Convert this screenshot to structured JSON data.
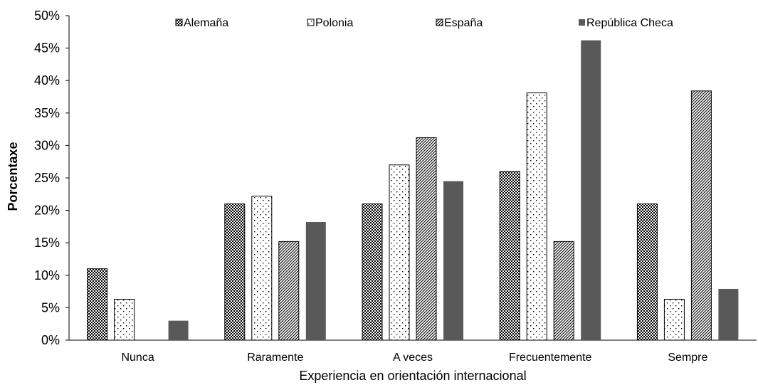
{
  "chart_data": {
    "type": "bar",
    "xlabel": "Experiencia en orientación internacional",
    "ylabel": "Porcentaxe",
    "ylim": [
      0,
      50
    ],
    "yticks": [
      "0%",
      "5%",
      "10%",
      "15%",
      "20%",
      "25%",
      "30%",
      "35%",
      "40%",
      "45%",
      "50%"
    ],
    "categories": [
      "Nunca",
      "Raramente",
      "A veces",
      "Frecuentemente",
      "Sempre"
    ],
    "series": [
      {
        "name": "Alemaña",
        "pattern": "checker",
        "color": "#000000",
        "values": [
          11,
          21,
          21,
          26,
          21
        ]
      },
      {
        "name": "Polonia",
        "pattern": "dots",
        "color": "#000000",
        "values": [
          6.3,
          22.2,
          27,
          38.1,
          6.3
        ]
      },
      {
        "name": "España",
        "pattern": "diagonal",
        "color": "#000000",
        "values": [
          0,
          15.2,
          31.2,
          15.2,
          38.4
        ]
      },
      {
        "name": "República Checa",
        "pattern": "solid",
        "color": "#595959",
        "values": [
          3,
          18.2,
          24.5,
          46.2,
          7.9
        ]
      }
    ],
    "legend_position": "top",
    "grid": false
  }
}
